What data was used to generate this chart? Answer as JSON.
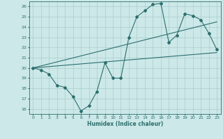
{
  "xlabel": "Humidex (Indice chaleur)",
  "bg_color": "#cce8e8",
  "grid_color": "#aacccc",
  "line_color": "#2d6e6e",
  "xlim": [
    -0.5,
    23.5
  ],
  "ylim": [
    15.5,
    26.5
  ],
  "xticks": [
    0,
    1,
    2,
    3,
    4,
    5,
    6,
    7,
    8,
    9,
    10,
    11,
    12,
    13,
    14,
    15,
    16,
    17,
    18,
    19,
    20,
    21,
    22,
    23
  ],
  "yticks": [
    16,
    17,
    18,
    19,
    20,
    21,
    22,
    23,
    24,
    25,
    26
  ],
  "line1_x": [
    0,
    1,
    2,
    3,
    4,
    5,
    6,
    7,
    8,
    9,
    10,
    11,
    12,
    13,
    14,
    15,
    16,
    17,
    18,
    19,
    20,
    21,
    22,
    23
  ],
  "line1_y": [
    20.0,
    19.8,
    19.4,
    18.3,
    18.1,
    17.2,
    15.8,
    16.3,
    17.7,
    20.5,
    19.0,
    19.0,
    23.0,
    25.0,
    25.6,
    26.2,
    26.3,
    22.5,
    23.2,
    25.3,
    25.1,
    24.7,
    23.4,
    21.8
  ],
  "line2_x": [
    0,
    23
  ],
  "line2_y": [
    20.0,
    21.5
  ],
  "line3_x": [
    0,
    23
  ],
  "line3_y": [
    20.0,
    24.5
  ]
}
